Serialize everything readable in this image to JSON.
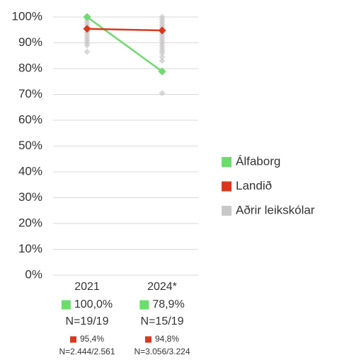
{
  "chart_data": {
    "type": "line",
    "categories": [
      "2021",
      "2024*"
    ],
    "series": [
      {
        "name": "Álfaborg",
        "color": "#6cdc6c",
        "values": [
          100,
          78.9
        ],
        "value_labels": [
          "100,0%",
          "78,9%"
        ],
        "sample_sizes": [
          "N=19/19",
          "N=15/19"
        ]
      },
      {
        "name": "Landið",
        "color": "#d9381e",
        "values": [
          95.4,
          94.8
        ],
        "value_labels": [
          "95,4%",
          "94,8%"
        ],
        "sample_sizes": [
          "N=2.444/2.561",
          "N=3.056/3.224"
        ]
      },
      {
        "name": "Aðrir leikskólar",
        "color": "#c8c8c8",
        "markers_only": true,
        "values": [
          [
            86.5,
            89,
            90,
            91,
            92,
            93,
            94,
            95,
            96,
            97,
            98,
            99,
            100
          ],
          [
            70.5,
            83,
            84.5,
            86,
            87,
            88,
            89,
            90,
            91,
            92,
            93,
            94,
            95,
            96,
            97,
            98,
            99,
            100
          ]
        ]
      }
    ],
    "ylim": [
      0,
      100
    ],
    "yticks": [
      {
        "value": 0,
        "label": "0%"
      },
      {
        "value": 10,
        "label": "10%"
      },
      {
        "value": 20,
        "label": "20%"
      },
      {
        "value": 30,
        "label": "30%"
      },
      {
        "value": 40,
        "label": "40%"
      },
      {
        "value": 50,
        "label": "50%"
      },
      {
        "value": 60,
        "label": "60%"
      },
      {
        "value": 70,
        "label": "70%"
      },
      {
        "value": 80,
        "label": "80%"
      },
      {
        "value": 90,
        "label": "90%"
      },
      {
        "value": 100,
        "label": "100%"
      }
    ],
    "grid": true,
    "legend": "right"
  }
}
